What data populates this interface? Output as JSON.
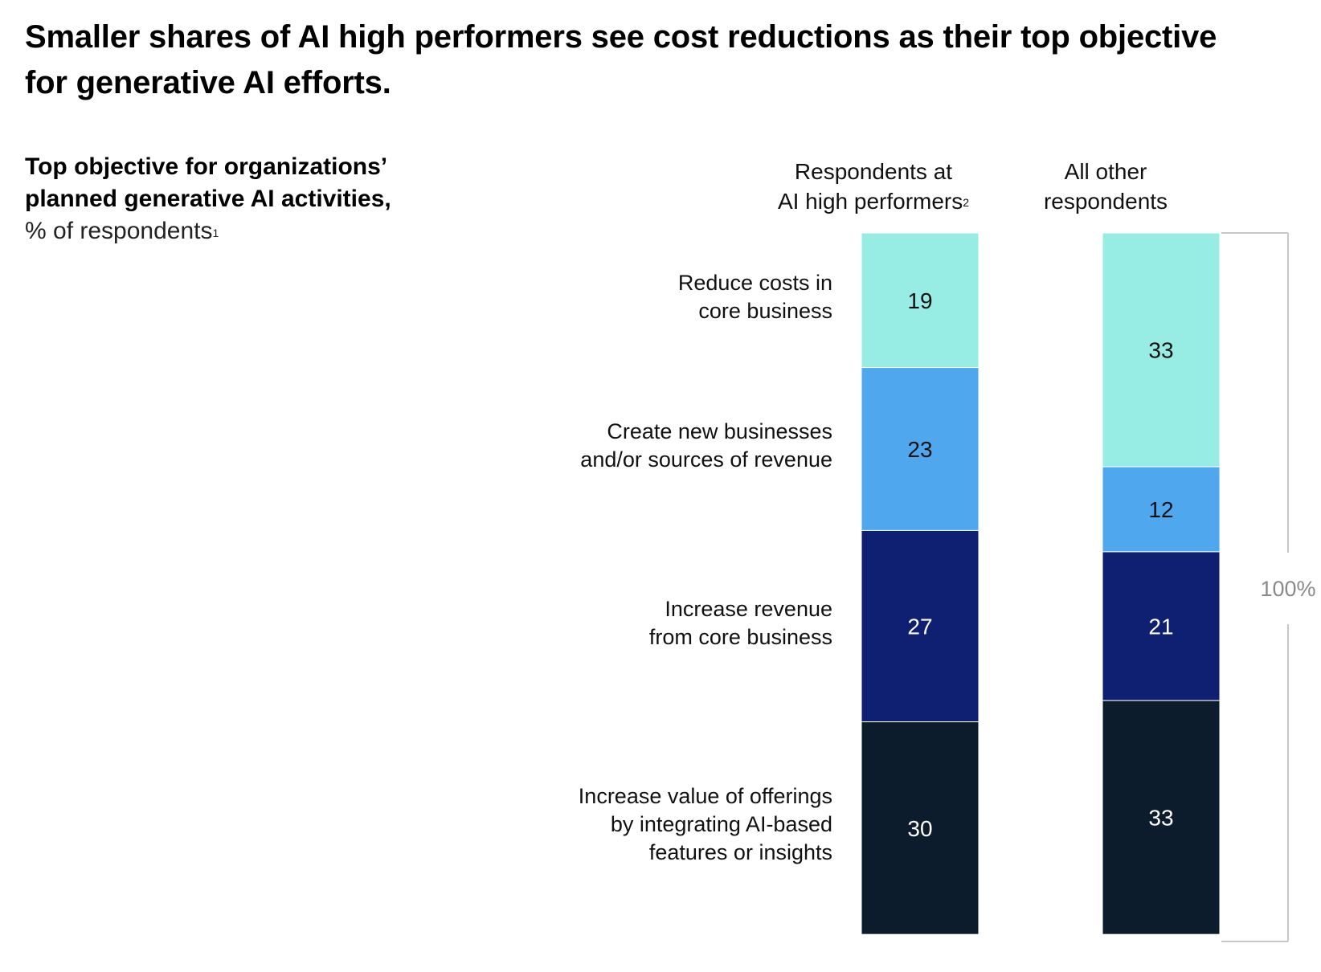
{
  "title": "Smaller shares of AI high performers see cost reductions as their top objective for generative AI efforts.",
  "subtitle": {
    "bold": "Top objective for organizations’ planned generative AI activities,",
    "light": "% of respondents",
    "footnote": "1"
  },
  "columns": [
    {
      "line1": "Respondents at",
      "line2": "AI high performers",
      "footnote": "2"
    },
    {
      "line1": "All other",
      "line2": "respondents",
      "footnote": ""
    }
  ],
  "total_label": "100%",
  "chart_data": {
    "type": "bar",
    "stacked": true,
    "categories": [
      "Respondents at AI high performers",
      "All other respondents"
    ],
    "series": [
      {
        "name": "Reduce costs in core business",
        "lines": [
          "Reduce costs in",
          "core business"
        ],
        "values": [
          19,
          33
        ],
        "color": "#97ECE4",
        "text_color": "#111111"
      },
      {
        "name": "Create new businesses and/or sources of revenue",
        "lines": [
          "Create new businesses",
          "and/or sources of revenue"
        ],
        "values": [
          23,
          12
        ],
        "color": "#4FA8ED",
        "text_color": "#111111"
      },
      {
        "name": "Increase revenue from core business",
        "lines": [
          "Increase revenue",
          "from core business"
        ],
        "values": [
          27,
          21
        ],
        "color": "#0F1F72",
        "text_color": "#FFFFFF"
      },
      {
        "name": "Increase value of offerings by integrating AI-based features or insights",
        "lines": [
          "Increase value of offerings",
          "by integrating AI-based",
          "features or insights"
        ],
        "values": [
          30,
          33
        ],
        "color": "#0D1C2C",
        "text_color": "#FFFFFF"
      }
    ],
    "ylim": [
      0,
      100
    ]
  }
}
